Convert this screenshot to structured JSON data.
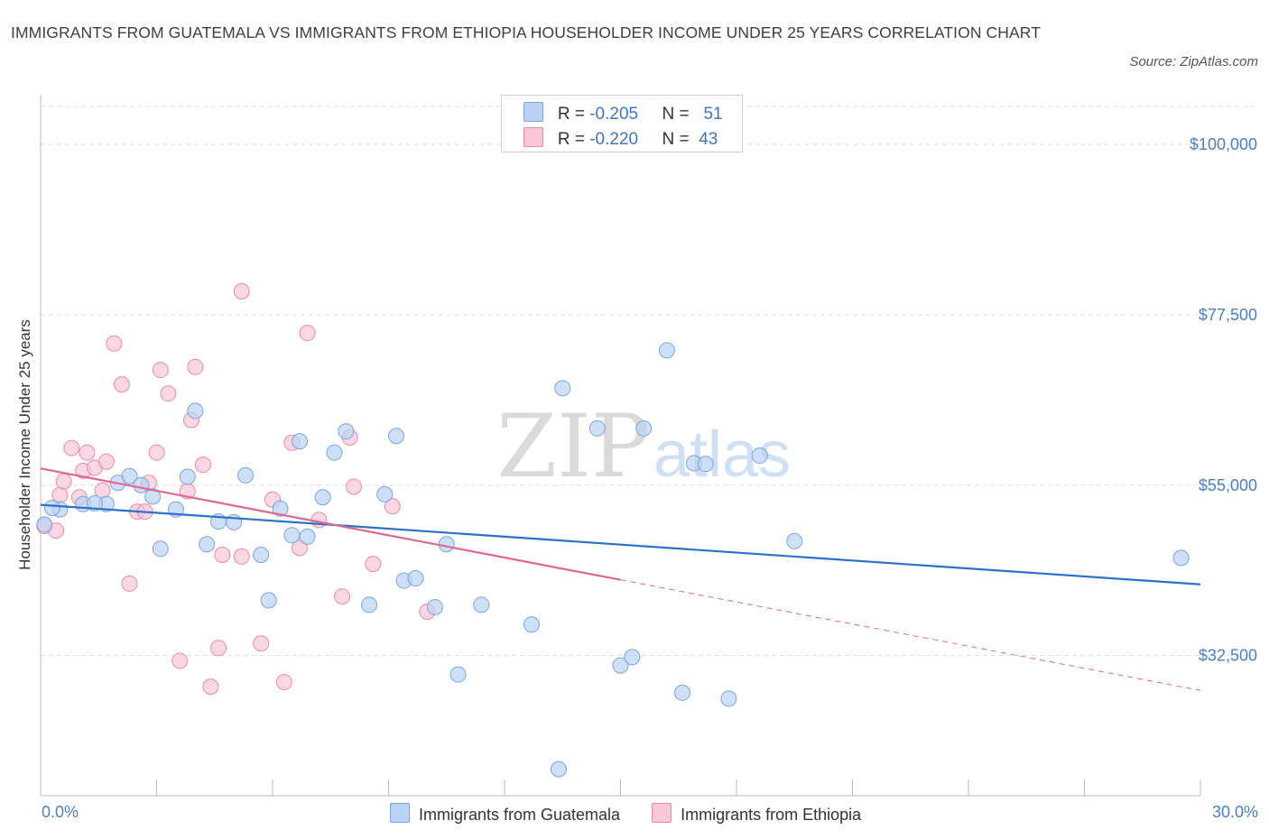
{
  "title": "IMMIGRANTS FROM GUATEMALA VS IMMIGRANTS FROM ETHIOPIA HOUSEHOLDER INCOME UNDER 25 YEARS CORRELATION CHART",
  "source": "Source: ZipAtlas.com",
  "watermark": {
    "zip": "ZIP",
    "atlas": "atlas"
  },
  "colors": {
    "guatemala_fill": "#b9d3f4",
    "guatemala_stroke": "#7ba3dc",
    "guatemala_line": "#2d6fcd",
    "ethiopia_fill": "#f9c6d6",
    "ethiopia_stroke": "#e88aa8",
    "ethiopia_line": "#e0668f",
    "tick_label": "#4a7fc8",
    "grid": "#dddddd"
  },
  "legend": {
    "rows": [
      {
        "r_label": "R =",
        "r_value": "-0.205",
        "n_label": "N =",
        "n_value": "51"
      },
      {
        "r_label": "R =",
        "r_value": "-0.220",
        "n_label": "N =",
        "n_value": "43"
      }
    ]
  },
  "chart_data": {
    "type": "scatter",
    "title": "IMMIGRANTS FROM GUATEMALA VS IMMIGRANTS FROM ETHIOPIA HOUSEHOLDER INCOME UNDER 25 YEARS CORRELATION CHART",
    "xlabel": "",
    "ylabel": "Householder Income Under 25 years",
    "xlim": [
      0,
      30
    ],
    "ylim": [
      14000,
      105000
    ],
    "x_tick_labels": [
      "0.0%",
      "30.0%"
    ],
    "y_ticks": [
      32500,
      55000,
      77500,
      100000
    ],
    "y_tick_labels": [
      "$32,500",
      "$55,000",
      "$77,500",
      "$100,000"
    ],
    "grid": true,
    "legend_position": "bottom",
    "series": [
      {
        "name": "Immigrants from Guatemala",
        "points": [
          [
            0.1,
            49.8
          ],
          [
            0.5,
            51.8
          ],
          [
            1.1,
            52.5
          ],
          [
            1.7,
            52.5
          ],
          [
            2.0,
            55.3
          ],
          [
            2.3,
            56.2
          ],
          [
            2.6,
            55.0
          ],
          [
            2.9,
            53.5
          ],
          [
            3.1,
            46.6
          ],
          [
            3.5,
            51.8
          ],
          [
            3.8,
            56.1
          ],
          [
            4.0,
            64.8
          ],
          [
            4.3,
            47.2
          ],
          [
            4.6,
            50.2
          ],
          [
            5.0,
            50.1
          ],
          [
            5.3,
            56.3
          ],
          [
            5.7,
            45.8
          ],
          [
            5.9,
            39.8
          ],
          [
            6.2,
            51.9
          ],
          [
            6.5,
            48.4
          ],
          [
            6.7,
            60.8
          ],
          [
            6.9,
            48.2
          ],
          [
            7.3,
            53.4
          ],
          [
            7.6,
            59.3
          ],
          [
            7.9,
            62.1
          ],
          [
            8.5,
            39.2
          ],
          [
            8.9,
            53.8
          ],
          [
            9.2,
            61.5
          ],
          [
            9.4,
            42.4
          ],
          [
            9.7,
            42.7
          ],
          [
            10.2,
            38.9
          ],
          [
            10.5,
            47.2
          ],
          [
            10.8,
            30.0
          ],
          [
            11.4,
            39.2
          ],
          [
            12.7,
            36.6
          ],
          [
            13.4,
            17.5
          ],
          [
            13.5,
            67.8
          ],
          [
            14.4,
            62.5
          ],
          [
            15.0,
            31.2
          ],
          [
            15.3,
            32.3
          ],
          [
            15.6,
            62.5
          ],
          [
            16.2,
            72.8
          ],
          [
            16.6,
            27.6
          ],
          [
            16.9,
            57.9
          ],
          [
            17.2,
            57.8
          ],
          [
            17.8,
            26.8
          ],
          [
            18.6,
            58.9
          ],
          [
            19.5,
            47.6
          ],
          [
            29.5,
            45.4
          ],
          [
            0.3,
            52.0
          ],
          [
            1.4,
            52.6
          ]
        ]
      },
      {
        "name": "Immigrants from Ethiopia",
        "points": [
          [
            0.1,
            49.6
          ],
          [
            0.4,
            49.0
          ],
          [
            0.5,
            53.7
          ],
          [
            0.6,
            55.5
          ],
          [
            0.8,
            59.9
          ],
          [
            1.0,
            53.4
          ],
          [
            1.1,
            56.9
          ],
          [
            1.2,
            59.3
          ],
          [
            1.4,
            57.3
          ],
          [
            1.6,
            54.3
          ],
          [
            1.7,
            58.1
          ],
          [
            1.9,
            73.7
          ],
          [
            2.1,
            68.3
          ],
          [
            2.3,
            42.0
          ],
          [
            2.5,
            51.5
          ],
          [
            2.7,
            51.5
          ],
          [
            2.8,
            55.3
          ],
          [
            3.0,
            59.3
          ],
          [
            3.1,
            70.2
          ],
          [
            3.3,
            67.1
          ],
          [
            3.6,
            31.8
          ],
          [
            3.8,
            54.2
          ],
          [
            3.9,
            63.6
          ],
          [
            4.0,
            70.6
          ],
          [
            4.2,
            57.7
          ],
          [
            4.4,
            28.4
          ],
          [
            4.6,
            33.5
          ],
          [
            4.7,
            45.8
          ],
          [
            5.2,
            45.6
          ],
          [
            5.7,
            34.1
          ],
          [
            6.0,
            53.1
          ],
          [
            6.3,
            29.0
          ],
          [
            6.5,
            60.6
          ],
          [
            6.7,
            46.7
          ],
          [
            6.9,
            75.1
          ],
          [
            7.2,
            50.4
          ],
          [
            7.8,
            40.3
          ],
          [
            8.0,
            61.3
          ],
          [
            8.1,
            54.8
          ],
          [
            8.6,
            44.6
          ],
          [
            9.1,
            52.2
          ],
          [
            10.0,
            38.3
          ],
          [
            5.2,
            80.6
          ]
        ]
      }
    ],
    "trend_lines": [
      {
        "name": "Immigrants from Guatemala",
        "x": [
          0,
          30
        ],
        "y": [
          52.4,
          41.9
        ],
        "style": "solid"
      },
      {
        "name": "Immigrants from Ethiopia",
        "x": [
          0,
          15
        ],
        "y": [
          57.2,
          42.5
        ],
        "style": "solid"
      },
      {
        "name": "Immigrants from Ethiopia",
        "x": [
          15,
          30
        ],
        "y": [
          42.5,
          27.9
        ],
        "style": "dashed"
      }
    ],
    "y_units_note_scale": 1000
  }
}
